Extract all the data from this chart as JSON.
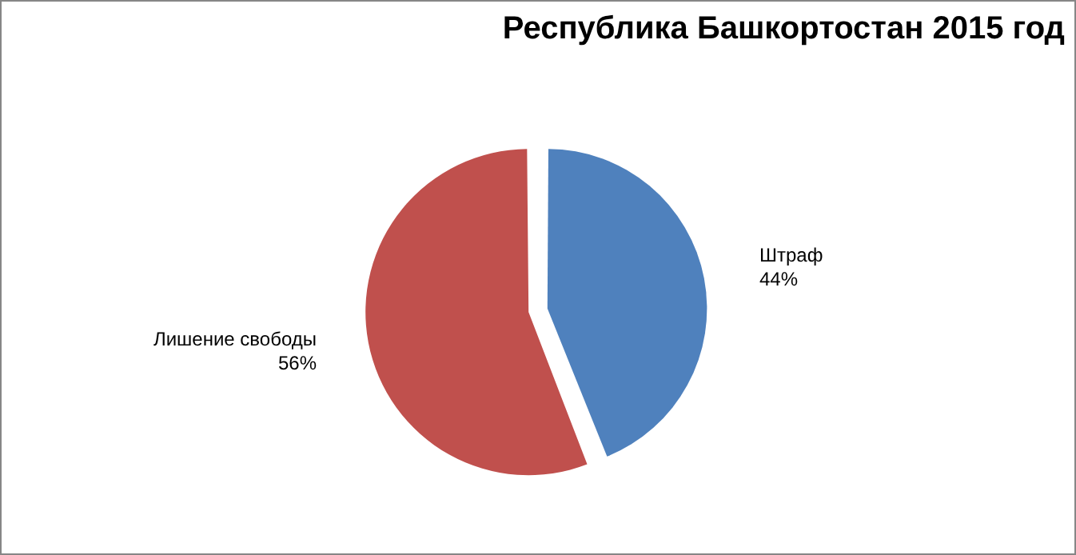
{
  "chart_data": {
    "type": "pie",
    "title": "Республика Башкортостан 2015 год",
    "categories": [
      "Штраф",
      "Лишение свободы"
    ],
    "values": [
      44,
      56
    ],
    "colors": [
      "#4f81bd",
      "#c0504d"
    ],
    "value_labels": [
      "44%",
      "56%"
    ],
    "legend": false
  }
}
